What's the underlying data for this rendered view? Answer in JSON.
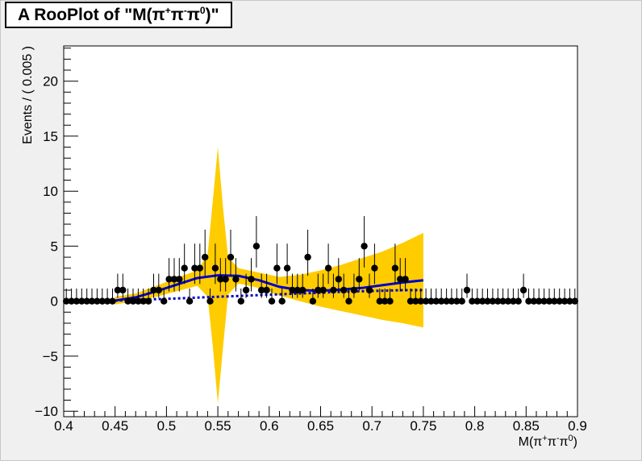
{
  "window": {
    "title_prefix": "A RooPlot of \"M(π",
    "title_sup1": "+",
    "title_mid1": "π",
    "title_sup2": "-",
    "title_mid2": "π",
    "title_sup3": "0",
    "title_suffix": ")\""
  },
  "chart_data": {
    "type": "scatter",
    "title": "A RooPlot of \"M(π+π-π0)\"",
    "xlabel": "M(π+π-π0)",
    "ylabel": "Events / ( 0.005 )",
    "xlim": [
      0.4,
      0.9
    ],
    "ylim": [
      -10.5,
      23.2
    ],
    "x_tick_labels": [
      "0.4",
      "0.45",
      "0.5",
      "0.55",
      "0.6",
      "0.65",
      "0.7",
      "0.75",
      "0.8",
      "0.85",
      "0.9"
    ],
    "x_tick_values": [
      0.4,
      0.45,
      0.5,
      0.55,
      0.6,
      0.65,
      0.7,
      0.75,
      0.8,
      0.85,
      0.9
    ],
    "y_tick_labels": [
      "−10",
      "−5",
      "0",
      "5",
      "10",
      "15",
      "20"
    ],
    "y_tick_values": [
      -10,
      -5,
      0,
      5,
      10,
      15,
      20
    ],
    "bin_width": 0.005,
    "colors": {
      "data": "#000000",
      "fit": "#0000cc",
      "band": "#ffcc00",
      "background": "#0000cc"
    },
    "series": [
      {
        "kind": "data",
        "x_start": 0.4025,
        "counts": [
          0,
          0,
          0,
          0,
          0,
          0,
          0,
          0,
          0,
          0,
          1,
          1,
          0,
          0,
          0,
          0,
          0,
          1,
          1,
          0,
          2,
          2,
          2,
          3,
          0,
          3,
          3,
          4,
          0,
          3,
          2,
          2,
          4,
          2,
          0,
          1,
          2,
          5,
          1,
          1,
          0,
          3,
          0,
          3,
          1,
          1,
          1,
          4,
          0,
          1,
          1,
          3,
          1,
          2,
          1,
          0,
          1,
          2,
          5,
          1,
          3,
          0,
          0,
          0,
          3,
          2,
          2,
          0,
          0,
          0,
          0,
          0,
          0,
          0,
          0,
          0,
          0,
          0,
          1,
          0,
          0,
          0,
          0,
          0,
          0,
          0,
          0,
          0,
          0,
          1,
          0,
          0,
          0,
          0,
          0,
          0,
          0,
          0,
          0,
          0
        ]
      },
      {
        "kind": "fit",
        "x": [
          0.45,
          0.47,
          0.49,
          0.51,
          0.53,
          0.55,
          0.57,
          0.59,
          0.61,
          0.63,
          0.65,
          0.67,
          0.69,
          0.71,
          0.73,
          0.75
        ],
        "y": [
          0.05,
          0.35,
          0.9,
          1.5,
          2.1,
          2.35,
          2.3,
          1.9,
          1.3,
          1.0,
          0.95,
          1.05,
          1.2,
          1.45,
          1.7,
          1.9
        ]
      },
      {
        "kind": "background",
        "x": [
          0.45,
          0.47,
          0.49,
          0.51,
          0.53,
          0.55,
          0.57,
          0.59,
          0.61,
          0.63,
          0.65,
          0.67,
          0.69,
          0.71,
          0.73,
          0.75
        ],
        "y": [
          0.05,
          0.12,
          0.18,
          0.25,
          0.32,
          0.4,
          0.47,
          0.55,
          0.62,
          0.7,
          0.77,
          0.85,
          0.9,
          0.95,
          1.0,
          1.0
        ]
      },
      {
        "kind": "band",
        "x": [
          0.45,
          0.47,
          0.49,
          0.51,
          0.53,
          0.54,
          0.545,
          0.55,
          0.555,
          0.56,
          0.57,
          0.59,
          0.61,
          0.63,
          0.65,
          0.67,
          0.69,
          0.71,
          0.73,
          0.75
        ],
        "upper": [
          0.4,
          0.7,
          1.4,
          2.1,
          2.8,
          4.2,
          9.0,
          14.0,
          8.5,
          4.0,
          3.0,
          2.6,
          2.2,
          2.4,
          2.8,
          3.3,
          3.9,
          4.5,
          5.3,
          6.2
        ],
        "lower": [
          -0.3,
          0.0,
          0.4,
          0.9,
          1.4,
          0.4,
          -4.0,
          -9.3,
          -4.2,
          0.6,
          1.6,
          1.2,
          0.5,
          0.0,
          -0.5,
          -0.9,
          -1.3,
          -1.7,
          -2.0,
          -2.4
        ]
      }
    ]
  }
}
